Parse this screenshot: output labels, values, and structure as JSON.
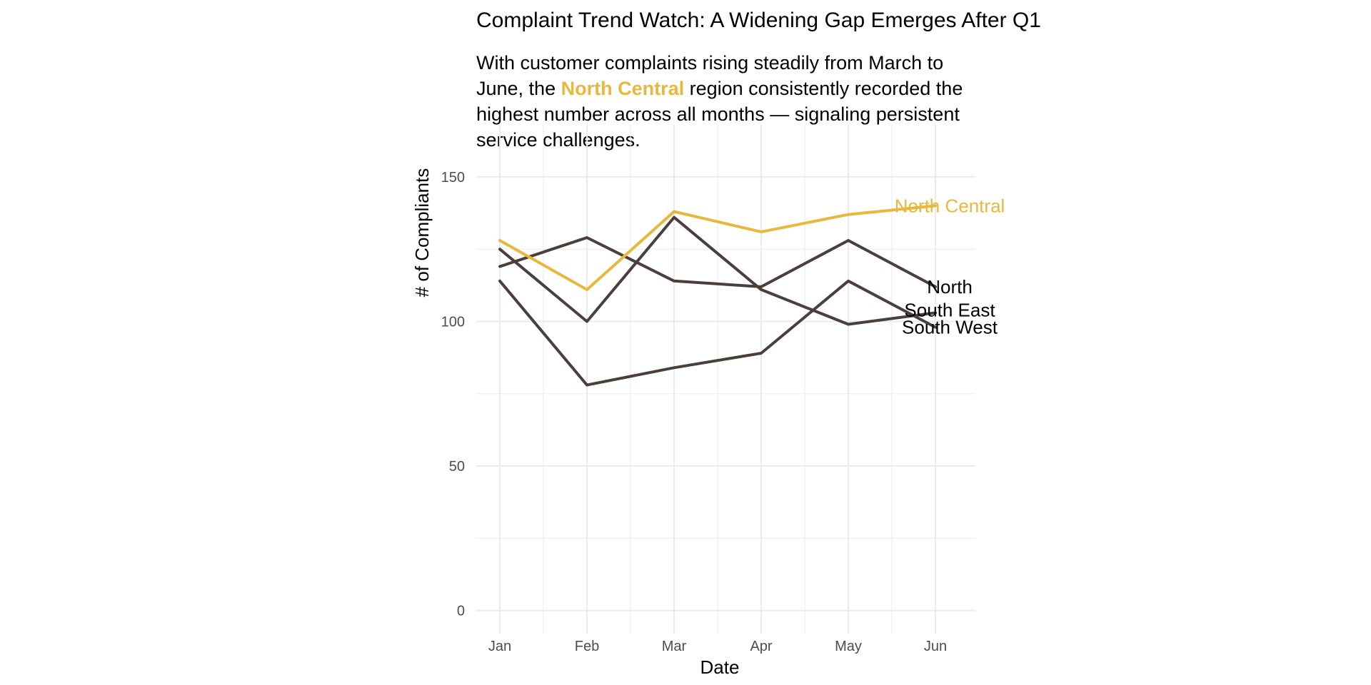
{
  "chart_data": {
    "type": "line",
    "title": "Complaint Trend Watch: A Widening Gap Emerges After Q1",
    "subtitle": {
      "before": "With customer complaints rising steadily from March to June, the ",
      "highlight": "North Central",
      "after": " region consistently recorded the highest number across all months — signaling persistent service challenges."
    },
    "xlabel": "Date",
    "ylabel": "# of Compliants",
    "categories": [
      "Jan",
      "Feb",
      "Mar",
      "Apr",
      "May",
      "Jun"
    ],
    "ylim": [
      -8,
      168
    ],
    "yticks": [
      0,
      50,
      100,
      150
    ],
    "grid": true,
    "legend": "none (direct labels at line ends)",
    "series": [
      {
        "name": "North Central",
        "color": "#E8B83E",
        "values": [
          128,
          111,
          138,
          131,
          137,
          140
        ]
      },
      {
        "name": "North",
        "color": "#4A3F3A",
        "values": [
          125,
          100,
          136,
          111,
          99,
          103
        ]
      },
      {
        "name": "South East",
        "color": "#4A3F3A",
        "values": [
          119,
          129,
          114,
          112,
          128,
          112
        ]
      },
      {
        "name": "South West",
        "color": "#4A3F3A",
        "values": [
          114,
          78,
          84,
          89,
          114,
          98
        ]
      }
    ],
    "labels": [
      {
        "text": "North Central",
        "color": "#E8B83E",
        "y": 140
      },
      {
        "text": "North",
        "color": "#000000",
        "y": 112
      },
      {
        "text": "South East",
        "color": "#000000",
        "y": 104
      },
      {
        "text": "South West",
        "color": "#000000",
        "y": 98
      }
    ],
    "highlight_color": "#E8B83E",
    "muted_color": "#4A3F3A",
    "grid_color": "#EBEBEB",
    "tick_label_color": "#4D4D4D"
  }
}
